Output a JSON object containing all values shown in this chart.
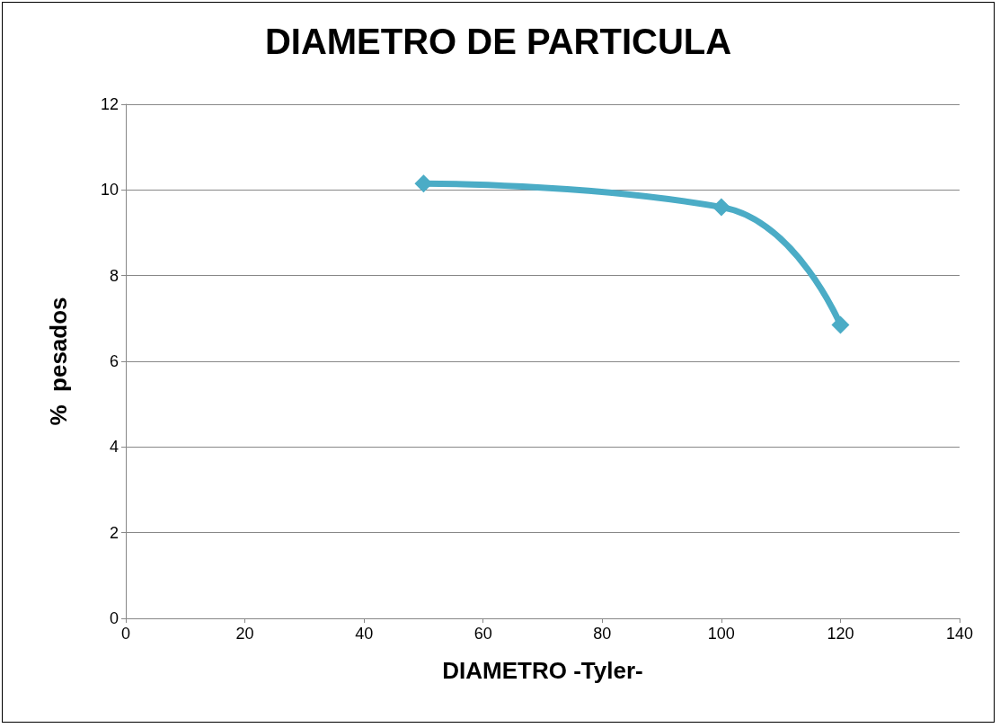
{
  "chart_data": {
    "type": "line",
    "title": "DIAMETRO DE PARTICULA",
    "xlabel": "DIAMETRO -Tyler-",
    "ylabel": "%  pesados",
    "x": [
      50,
      100,
      120
    ],
    "series": [
      {
        "color": "#4bacc6",
        "values": [
          10.15,
          9.6,
          6.85
        ]
      }
    ],
    "xlim": [
      0,
      140
    ],
    "xticks": [
      0,
      20,
      40,
      60,
      80,
      100,
      120,
      140
    ],
    "ylim": [
      0,
      12
    ],
    "yticks": [
      0,
      2,
      4,
      6,
      8,
      10,
      12
    ],
    "grid": "y",
    "marker": "diamond",
    "line_style": "solid"
  }
}
